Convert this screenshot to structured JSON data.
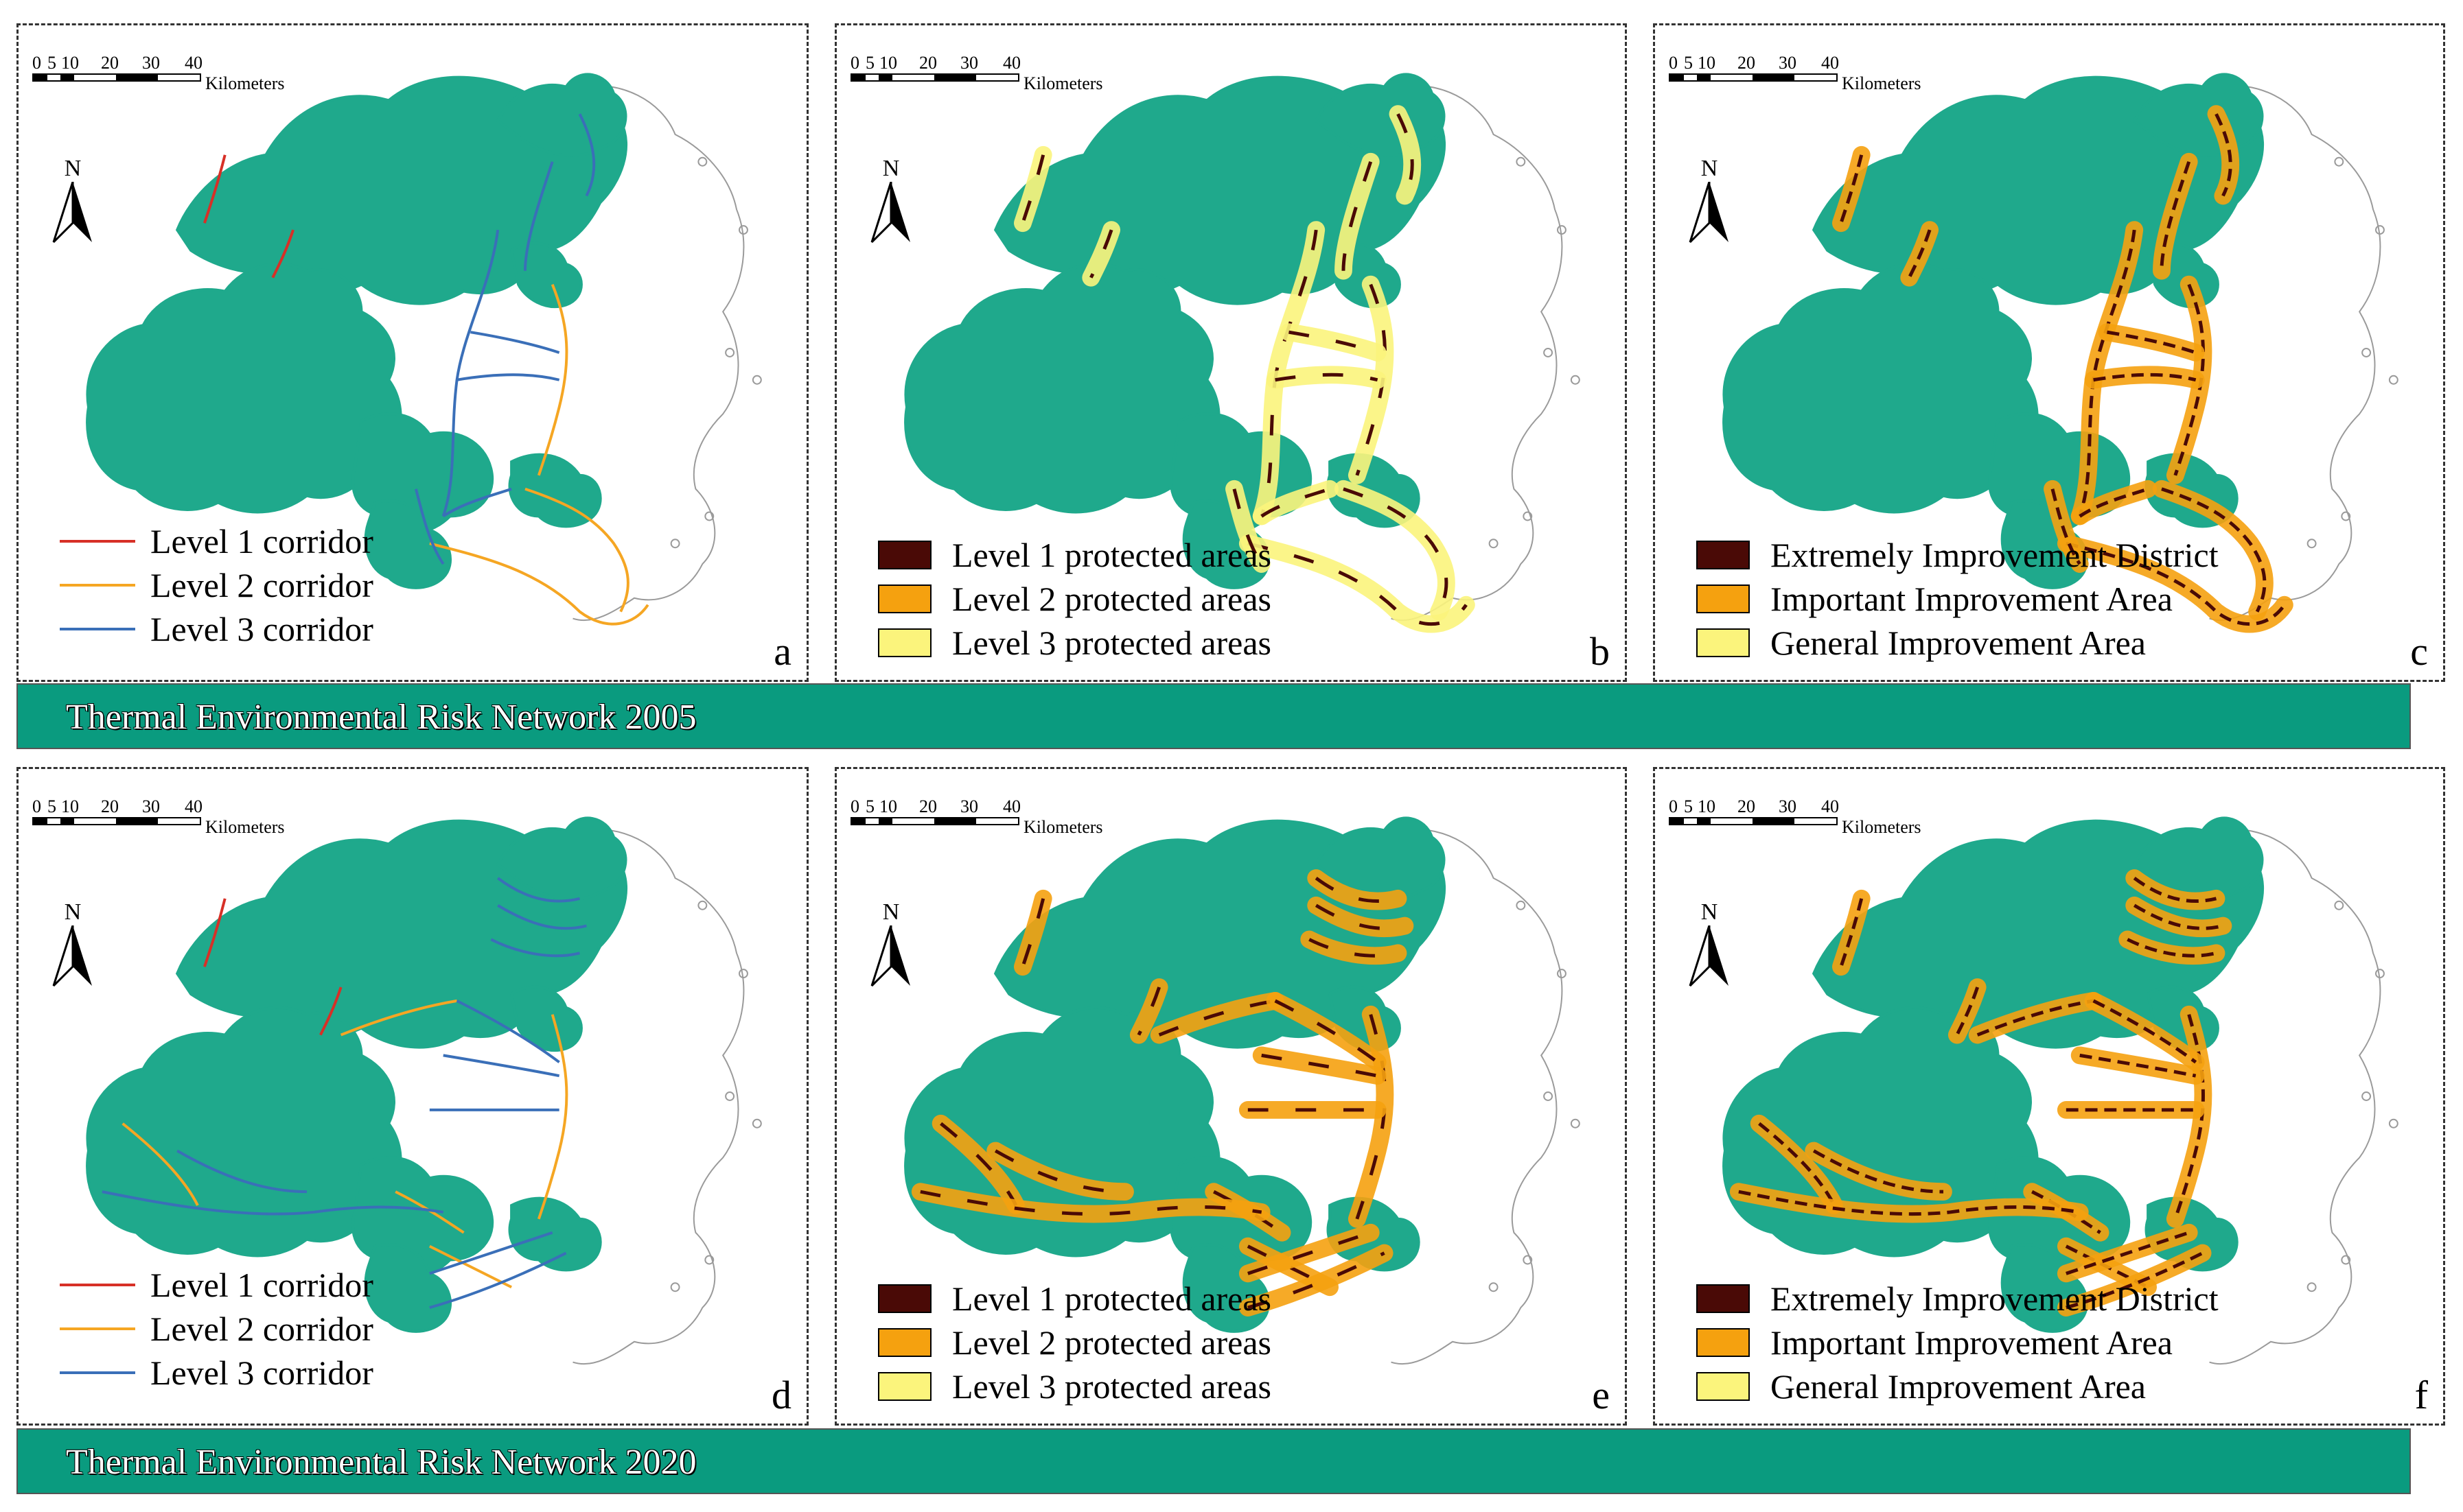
{
  "colors": {
    "land": "#1fa98c",
    "outline": "#9a9a9a",
    "level1_corridor": "#d73027",
    "level2_corridor": "#f5a623",
    "level3_corridor": "#3a6fb8",
    "level1_area": "#4a0a06",
    "level2_area": "#f5a10f",
    "level3_area": "#fbf47c",
    "banner": "#0a9b7f"
  },
  "scale": {
    "ticks": [
      "0",
      "5",
      "10",
      "20",
      "30",
      "40"
    ],
    "unit": "Kilometers"
  },
  "north_label": "N",
  "legends": {
    "corridors": [
      "Level 1 corridor",
      "Level 2 corridor",
      "Level 3 corridor"
    ],
    "protected": [
      "Level 1 protected areas",
      "Level 2 protected areas",
      "Level 3 protected areas"
    ],
    "improvement": [
      "Extremely Improvement District",
      "Important Improvement Area",
      "General Improvement Area"
    ]
  },
  "panels": [
    {
      "letter": "a",
      "type": "corridors",
      "year": "2005"
    },
    {
      "letter": "b",
      "type": "protected",
      "year": "2005"
    },
    {
      "letter": "c",
      "type": "improvement",
      "year": "2005"
    },
    {
      "letter": "d",
      "type": "corridors",
      "year": "2020"
    },
    {
      "letter": "e",
      "type": "protected",
      "year": "2020"
    },
    {
      "letter": "f",
      "type": "improvement",
      "year": "2020"
    }
  ],
  "banners": {
    "top": "Thermal Environmental Risk Network 2005",
    "bottom": "Thermal Environmental Risk Network 2020"
  }
}
